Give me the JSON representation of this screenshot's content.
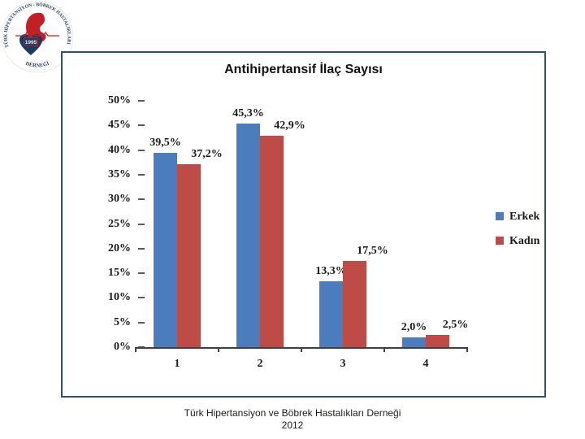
{
  "chart_data": {
    "type": "bar",
    "title": "Antihipertansif İlaç Sayısı",
    "categories": [
      "1",
      "2",
      "3",
      "4"
    ],
    "series": [
      {
        "name": "Erkek",
        "color": "#4b7cbe",
        "values": [
          39.5,
          45.3,
          13.3,
          2.0
        ],
        "labels": [
          "39,5%",
          "45,3%",
          "13,3%",
          "2,0%"
        ]
      },
      {
        "name": "Kadın",
        "color": "#bf4b47",
        "values": [
          37.2,
          42.9,
          17.5,
          2.5
        ],
        "labels": [
          "37,2%",
          "42,9%",
          "17,5%",
          "2,5%"
        ]
      }
    ],
    "ylim": [
      0,
      50
    ],
    "ytick_step": 5,
    "yticks": [
      "0%",
      "5%",
      "10%",
      "15%",
      "20%",
      "25%",
      "30%",
      "35%",
      "40%",
      "45%",
      "50%"
    ],
    "legend": [
      "Erkek",
      "Kadın"
    ],
    "legend_position": "right",
    "grid": false
  },
  "logo": {
    "ring_text": "TÜRK HİPERTANSİYON - BÖBREK HASTALIKLARI",
    "ring_text_bottom": "DERNEĞİ",
    "year": "1995",
    "navy": "#1e3a5f",
    "red": "#c32026"
  },
  "footer": {
    "line1": "Türk Hipertansiyon ve Böbrek Hastalıkları Derneği",
    "line2": "2012"
  }
}
